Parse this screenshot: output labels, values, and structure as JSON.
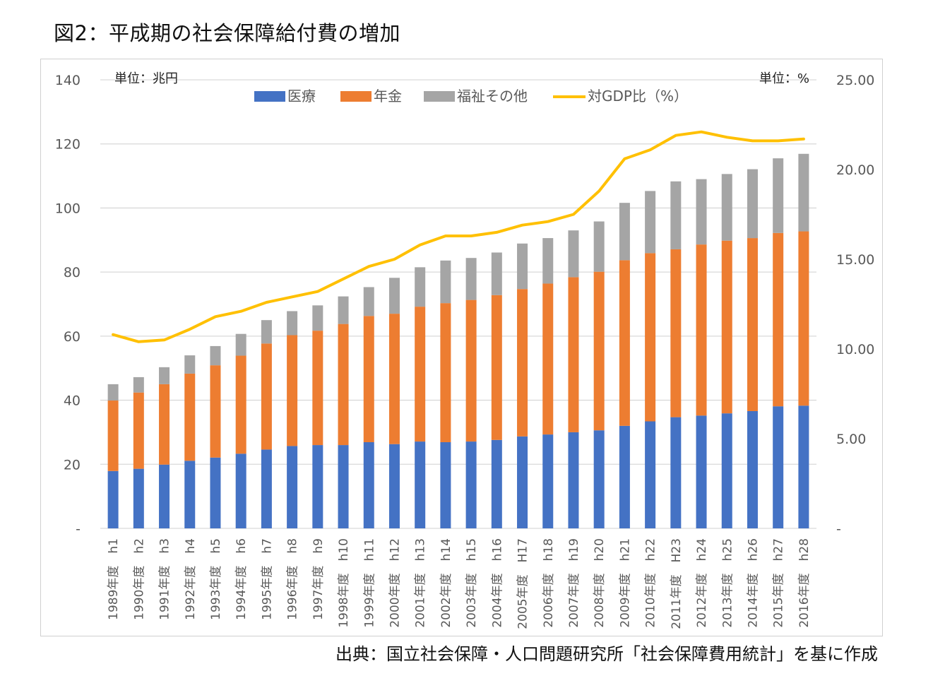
{
  "figure": {
    "title": "図2：平成期の社会保障給付費の増加",
    "source": "出典：国立社会保障・人口問題研究所「社会保障費用統計」を基に作成"
  },
  "chart_data": {
    "type": "bar",
    "stacked": true,
    "title": "図2：平成期の社会保障給付費の増加",
    "unit_left": "単位：兆円",
    "unit_right": "単位：%",
    "categories": [
      "1989年度　h1",
      "1990年度　h2",
      "1991年度　h3",
      "1992年度　h4",
      "1993年度　h5",
      "1994年度　h6",
      "1995年度　h7",
      "1996年度　h8",
      "1997年度　h9",
      "1998年度　h10",
      "1999年度　h11",
      "2000年度　h12",
      "2001年度　h13",
      "2002年度　h14",
      "2003年度　h15",
      "2004年度　h16",
      "2005年度　H17",
      "2006年度　h18",
      "2007年度　h19",
      "2008年度　h20",
      "2009年度　h21",
      "2010年度　h22",
      "2011年度　H23",
      "2012年度　h24",
      "2013年度　h25",
      "2014年度　h26",
      "2015年度　h27",
      "2016年度　h28"
    ],
    "series": [
      {
        "name": "医療",
        "color": "#4472c4",
        "axis": "left",
        "values": [
          17.9,
          18.6,
          19.9,
          21.1,
          22.1,
          23.3,
          24.6,
          25.7,
          26.0,
          26.0,
          26.9,
          26.3,
          27.1,
          26.9,
          27.1,
          27.6,
          28.7,
          29.3,
          30.0,
          30.6,
          32.0,
          33.4,
          34.7,
          35.2,
          35.9,
          36.6,
          38.1,
          38.3
        ]
      },
      {
        "name": "年金",
        "color": "#ed7d31",
        "axis": "left",
        "values": [
          22.0,
          23.8,
          25.1,
          27.2,
          28.8,
          30.6,
          33.1,
          34.6,
          35.7,
          37.8,
          39.4,
          40.7,
          42.1,
          43.4,
          44.2,
          45.2,
          46.0,
          47.1,
          48.4,
          49.5,
          51.7,
          52.5,
          52.4,
          53.4,
          53.9,
          54.0,
          54.1,
          54.4
        ]
      },
      {
        "name": "福祉その他",
        "color": "#a5a5a5",
        "axis": "left",
        "values": [
          5.1,
          4.8,
          5.3,
          5.7,
          6.0,
          6.8,
          7.3,
          7.5,
          7.9,
          8.6,
          9.0,
          11.2,
          12.3,
          13.3,
          13.1,
          13.3,
          14.2,
          14.2,
          14.6,
          15.7,
          17.9,
          19.4,
          21.2,
          20.4,
          20.8,
          21.5,
          23.3,
          24.2
        ]
      },
      {
        "name": "対GDP比（%）",
        "color": "#ffc000",
        "axis": "right",
        "type": "line",
        "values": [
          10.8,
          10.4,
          10.5,
          11.1,
          11.8,
          12.1,
          12.6,
          12.9,
          13.2,
          13.9,
          14.6,
          15.0,
          15.8,
          16.3,
          16.3,
          16.5,
          16.9,
          17.1,
          17.5,
          18.8,
          20.6,
          21.1,
          21.9,
          22.1,
          21.8,
          21.6,
          21.6,
          21.7
        ]
      }
    ],
    "left_axis": {
      "ylim": [
        0,
        140
      ],
      "ticks": [
        "-",
        "20",
        "40",
        "60",
        "80",
        "100",
        "120",
        "140"
      ]
    },
    "right_axis": {
      "ylim": [
        0,
        25
      ],
      "ticks": [
        "-",
        "5.00",
        "10.00",
        "15.00",
        "20.00",
        "25.00"
      ]
    },
    "grid": true,
    "legend_position": "top-center"
  }
}
